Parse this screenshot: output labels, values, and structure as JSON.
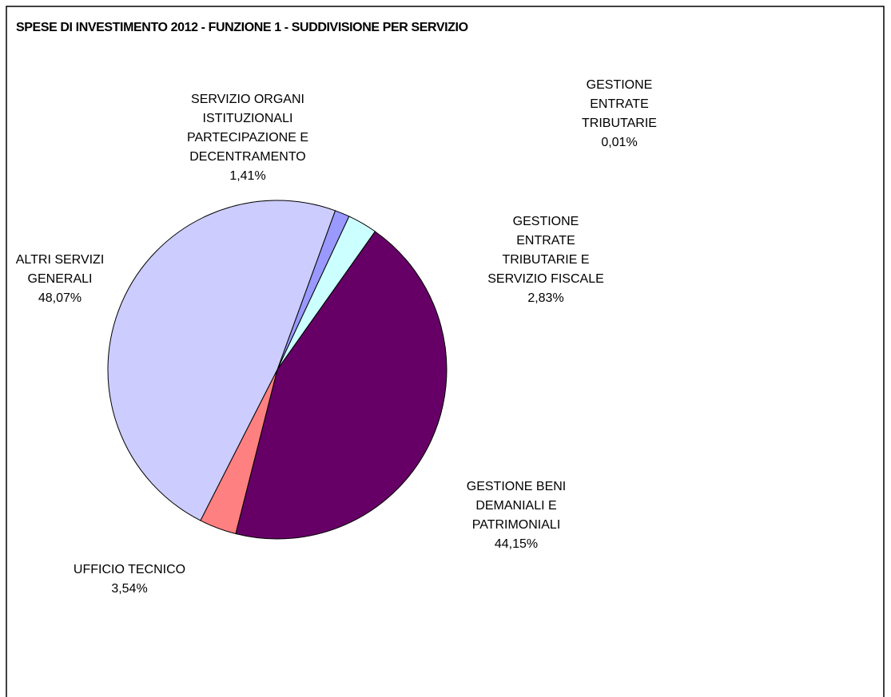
{
  "chart_data": {
    "type": "pie",
    "title": "SPESE DI INVESTIMENTO 2012 - FUNZIONE 1 - SUDDIVISIONE PER SERVIZIO",
    "categories": [
      "SERVIZIO ORGANI\nISTITUZIONALI\nPARTECIPAZIONE E\nDECENTRAMENTO",
      "GESTIONE\nENTRATE\nTRIBUTARIE E\nSERVIZIO FISCALE",
      "GESTIONE\nENTRATE\nTRIBUTARIE",
      "GESTIONE BENI\nDEMANIALI E\nPATRIMONIALI",
      "UFFICIO TECNICO",
      "ALTRI SERVIZI\nGENERALI"
    ],
    "values": [
      1.41,
      2.83,
      0.01,
      44.15,
      3.54,
      48.07
    ],
    "value_labels": [
      "1,41%",
      "2,83%",
      "0,01%",
      "44,15%",
      "3,54%",
      "48,07%"
    ],
    "colors": [
      "#9999ff",
      "#ccffff",
      "#ffffcc",
      "#660066",
      "#ff8080",
      "#ccccff"
    ]
  }
}
